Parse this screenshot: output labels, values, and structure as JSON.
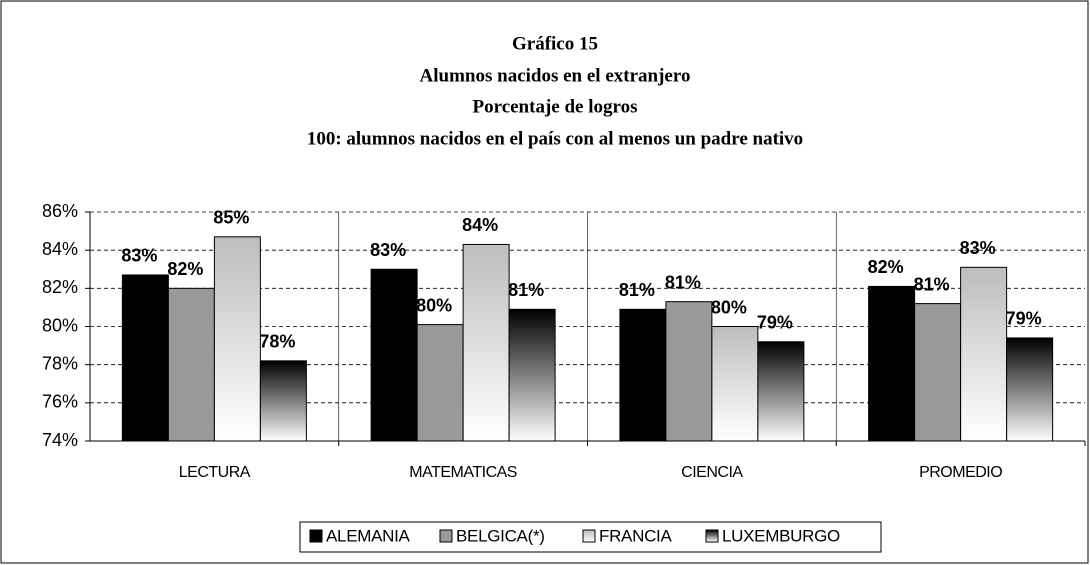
{
  "chart_data": {
    "type": "bar",
    "title": [
      "Gráfico 15",
      "Alumnos nacidos en el extranjero",
      "Porcentaje de logros",
      "100: alumnos nacidos en el país con al menos un padre nativo"
    ],
    "categories": [
      "LECTURA",
      "MATEMATICAS",
      "CIENCIA",
      "PROMEDIO"
    ],
    "series": [
      {
        "name": "ALEMANIA",
        "color": "#000000",
        "values": [
          82.7,
          83.0,
          80.9,
          82.1
        ],
        "value_labels": [
          "83%",
          "83%",
          "81%",
          "82%"
        ]
      },
      {
        "name": "BELGICA(*)",
        "color": "#999999",
        "values": [
          82.0,
          80.1,
          81.3,
          81.2
        ],
        "value_labels": [
          "82%",
          "80%",
          "81%",
          "81%"
        ]
      },
      {
        "name": "FRANCIA",
        "color": "#bdbdbd",
        "gradient": true,
        "values": [
          84.7,
          84.3,
          80.0,
          83.1
        ],
        "value_labels": [
          "85%",
          "84%",
          "80%",
          "83%"
        ]
      },
      {
        "name": "LUXEMBURGO",
        "color": "#000000",
        "gradient": true,
        "values": [
          78.2,
          80.9,
          79.2,
          79.4
        ],
        "value_labels": [
          "78%",
          "81%",
          "79%",
          "79%"
        ]
      }
    ],
    "ylim": [
      74,
      86
    ],
    "yticks": [
      {
        "value": 74,
        "label": "74%"
      },
      {
        "value": 76,
        "label": "76%"
      },
      {
        "value": 78,
        "label": "78%"
      },
      {
        "value": 80,
        "label": "80%"
      },
      {
        "value": 82,
        "label": "82%"
      },
      {
        "value": 84,
        "label": "84%"
      },
      {
        "value": 86,
        "label": "86%"
      }
    ],
    "grid": true,
    "legend": "bottom"
  }
}
